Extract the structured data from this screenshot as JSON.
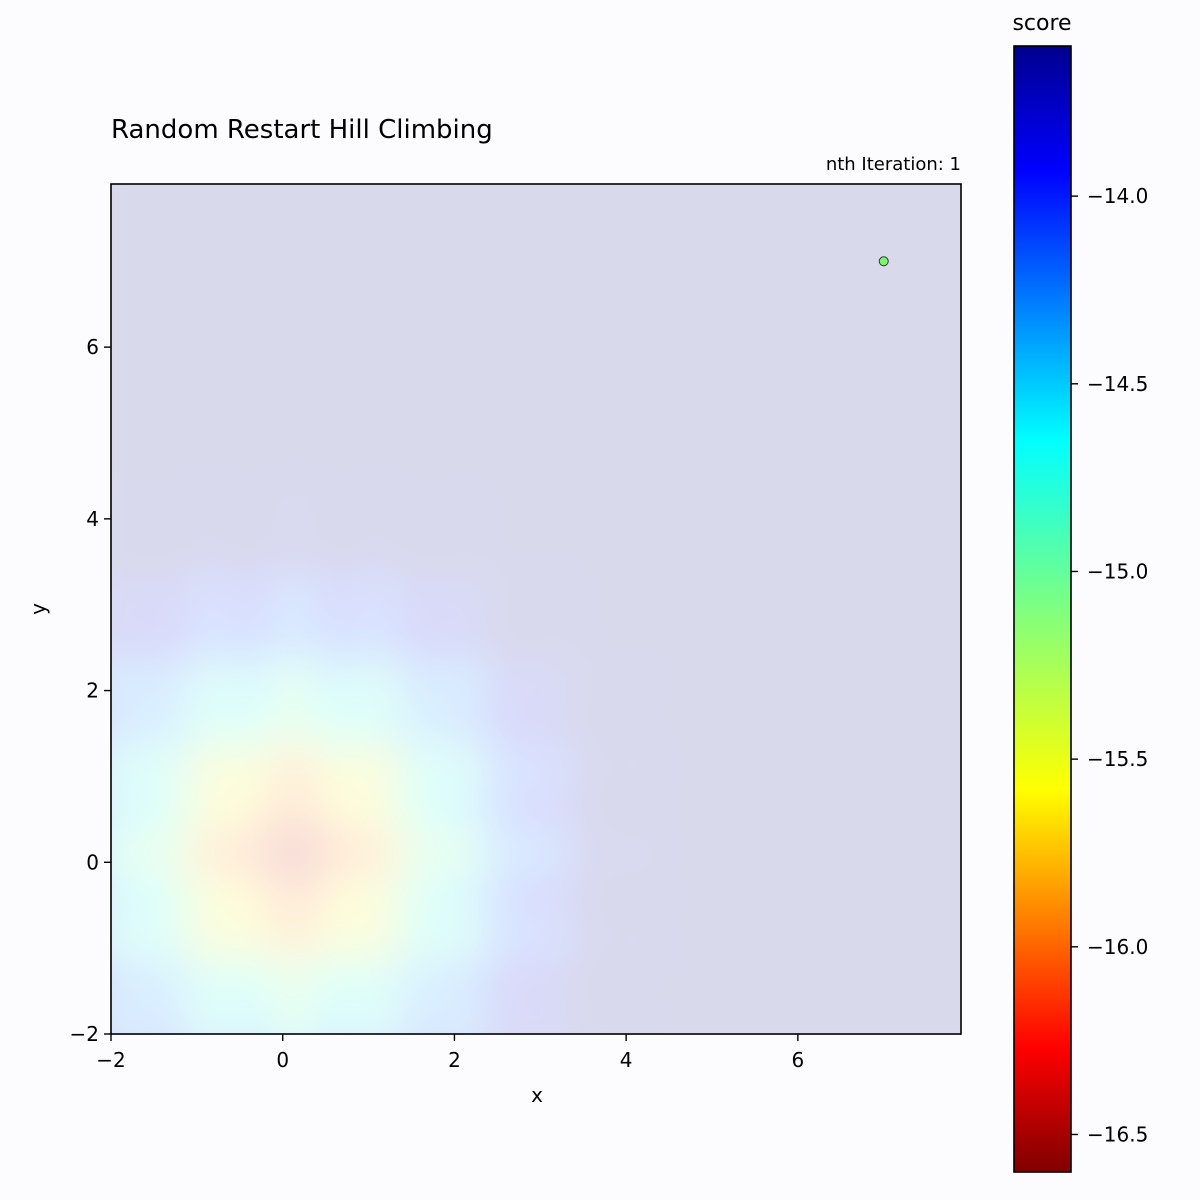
{
  "chart_data": {
    "type": "heatmap",
    "title": "Random Restart Hill Climbing",
    "annotation": "nth Iteration: 1",
    "xlabel": "x",
    "ylabel": "y",
    "xlim": [
      -2,
      7.9
    ],
    "ylim": [
      -2,
      7.9
    ],
    "xticks": [
      -2,
      0,
      2,
      4,
      6
    ],
    "yticks": [
      -2,
      0,
      2,
      4,
      6
    ],
    "xtick_labels": [
      "−2",
      "0",
      "2",
      "4",
      "6"
    ],
    "ytick_labels": [
      "−2",
      "0",
      "2",
      "4",
      "6"
    ],
    "colormap": "jet",
    "alpha": 0.15,
    "colorbar": {
      "label": "score",
      "range": [
        -16.6,
        -13.6
      ],
      "ticks": [
        -14.0,
        -14.5,
        -15.0,
        -15.5,
        -16.0,
        -16.5
      ],
      "tick_labels": [
        "−14.0",
        "−14.5",
        "−15.0",
        "−15.5",
        "−16.0",
        "−16.5"
      ],
      "reversed": true
    },
    "points": [
      {
        "x": 7.0,
        "y": 7.0,
        "color": "#7cf66e"
      }
    ]
  }
}
